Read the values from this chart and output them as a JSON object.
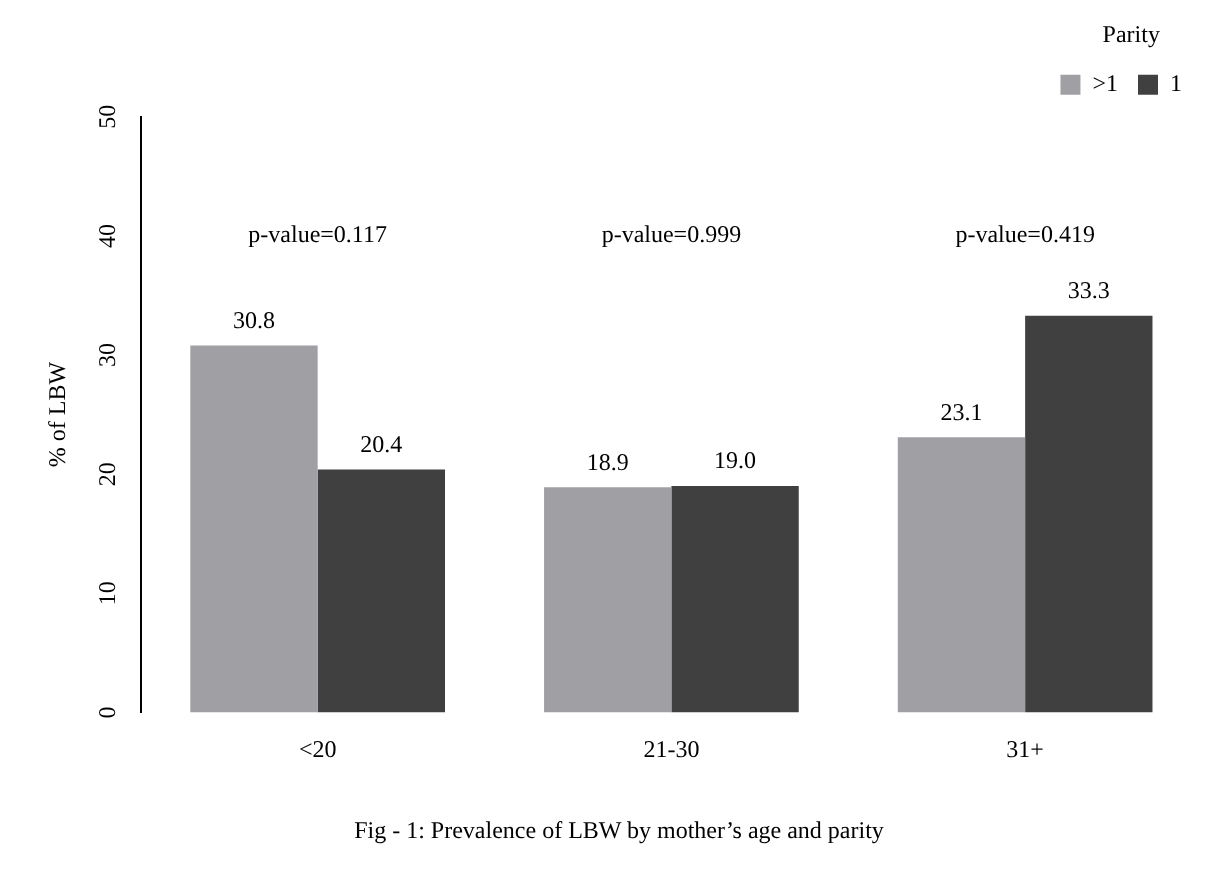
{
  "chart_data": {
    "type": "bar",
    "title": "Fig - 1: Prevalence of LBW by mother’s age and parity",
    "ylabel": "% of LBW",
    "legend_title": "Parity",
    "categories": [
      "<20",
      "21-30",
      "31+"
    ],
    "series": [
      {
        "name": ">1",
        "color": "#a0a0a4",
        "values": [
          30.8,
          18.9,
          23.1
        ],
        "value_labels": [
          "30.8",
          "18.9",
          "23.1"
        ]
      },
      {
        "name": "1",
        "color": "#404040",
        "values": [
          20.4,
          19.0,
          33.3
        ],
        "value_labels": [
          "20.4",
          "19.0",
          "33.3"
        ]
      }
    ],
    "ylim": [
      0,
      50
    ],
    "yticks": [
      0,
      10,
      20,
      30,
      40,
      50
    ],
    "grid": false,
    "legend": "top right",
    "annotations": [
      "p-value=0.117",
      "p-value=0.999",
      "p-value=0.419"
    ]
  }
}
